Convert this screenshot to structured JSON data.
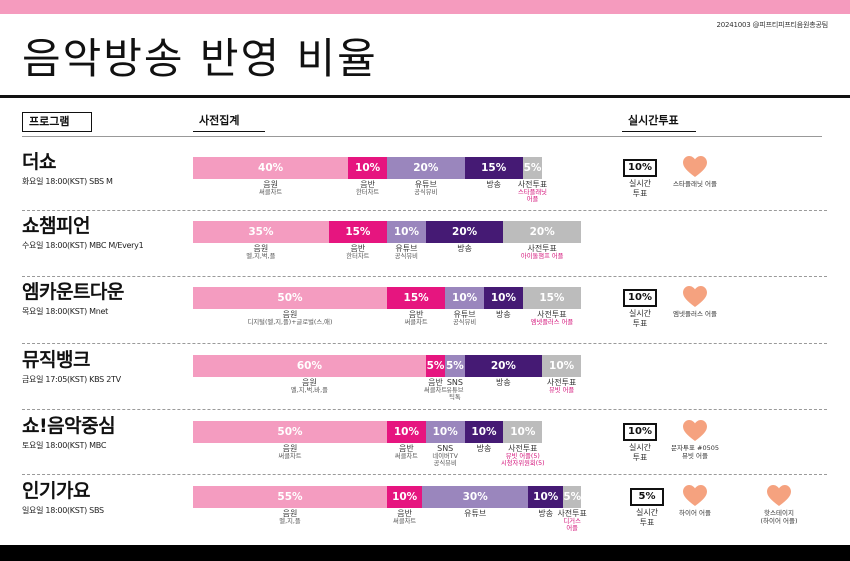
{
  "colors": {
    "top_bar": "#f59bbe",
    "pink": "#f49cc0",
    "magenta": "#e6157f",
    "lavender": "#9a86bd",
    "purple": "#451a74",
    "gray": "#bcbcbc",
    "accent_text": "#d4127a",
    "heart": "#f5a27f"
  },
  "credit": "20241003 @피프티피프티음원총공팀",
  "title": "음악방송 반영 비율",
  "headers": {
    "program": "프로그램",
    "pre": "사전집계",
    "realtime": "실시간투표"
  },
  "programs": [
    {
      "name": "더쇼",
      "time": "화요일 18:00(KST) SBS M",
      "segments": [
        {
          "pct": "40%",
          "share": 40,
          "color": "pink",
          "label": "음원",
          "sub": "써클차트",
          "note": ""
        },
        {
          "pct": "10%",
          "share": 10,
          "color": "magenta",
          "label": "음반",
          "sub": "한터차트",
          "note": ""
        },
        {
          "pct": "20%",
          "share": 20,
          "color": "lavender",
          "label": "유튜브",
          "sub": "공식뮤비",
          "note": ""
        },
        {
          "pct": "15%",
          "share": 15,
          "color": "purple",
          "label": "방송",
          "sub": "",
          "note": ""
        },
        {
          "pct": "5%",
          "share": 5,
          "color": "gray",
          "label": "사전투표",
          "sub": "",
          "note": "스타플래닛\n어플"
        }
      ],
      "realtime": {
        "pct": "10%",
        "label": "실시간\n투표"
      },
      "hearts": [
        {
          "label": "스타플래닛 어플"
        }
      ]
    },
    {
      "name": "쇼챔피언",
      "time": "수요일 18:00(KST) MBC M/Every1",
      "segments": [
        {
          "pct": "35%",
          "share": 35,
          "color": "pink",
          "label": "음원",
          "sub": "멜,지,벅,플",
          "note": ""
        },
        {
          "pct": "15%",
          "share": 15,
          "color": "magenta",
          "label": "음반",
          "sub": "한터차트",
          "note": ""
        },
        {
          "pct": "10%",
          "share": 10,
          "color": "lavender",
          "label": "유튜브",
          "sub": "공식뮤비",
          "note": ""
        },
        {
          "pct": "20%",
          "share": 20,
          "color": "purple",
          "label": "방송",
          "sub": "",
          "note": ""
        },
        {
          "pct": "20%",
          "share": 20,
          "color": "gray",
          "label": "사전투표",
          "sub": "",
          "note": "아이돌챔프 어플"
        }
      ],
      "realtime": null,
      "hearts": []
    },
    {
      "name": "엠카운트다운",
      "time": "목요일 18:00(KST) Mnet",
      "segments": [
        {
          "pct": "50%",
          "share": 50,
          "color": "pink",
          "label": "음원",
          "sub": "디지털(멜,지,플)+글로벌(스,애)",
          "note": ""
        },
        {
          "pct": "15%",
          "share": 15,
          "color": "magenta",
          "label": "음반",
          "sub": "써클차트",
          "note": ""
        },
        {
          "pct": "10%",
          "share": 10,
          "color": "lavender",
          "label": "유튜브",
          "sub": "공식뮤비",
          "note": ""
        },
        {
          "pct": "10%",
          "share": 10,
          "color": "purple",
          "label": "방송",
          "sub": "",
          "note": ""
        },
        {
          "pct": "15%",
          "share": 15,
          "color": "gray",
          "label": "사전투표",
          "sub": "",
          "note": "엠넷플러스 어플"
        }
      ],
      "realtime": {
        "pct": "10%",
        "label": "실시간\n투표"
      },
      "hearts": [
        {
          "label": "엠넷플러스 어플"
        }
      ]
    },
    {
      "name": "뮤직뱅크",
      "time": "금요일 17:05(KST) KBS 2TV",
      "segments": [
        {
          "pct": "60%",
          "share": 60,
          "color": "pink",
          "label": "음원",
          "sub": "멜,지,벅,바,플",
          "note": ""
        },
        {
          "pct": "5%",
          "share": 5,
          "color": "magenta",
          "label": "음반",
          "sub": "써클차트",
          "note": ""
        },
        {
          "pct": "5%",
          "share": 5,
          "color": "lavender",
          "label": "SNS",
          "sub": "유튜브\n틱톡",
          "note": ""
        },
        {
          "pct": "20%",
          "share": 20,
          "color": "purple",
          "label": "방송",
          "sub": "",
          "note": ""
        },
        {
          "pct": "10%",
          "share": 10,
          "color": "gray",
          "label": "사전투표",
          "sub": "",
          "note": "뮤빗 어플"
        }
      ],
      "realtime": null,
      "hearts": []
    },
    {
      "name": "쇼!음악중심",
      "time": "토요일 18:00(KST) MBC",
      "segments": [
        {
          "pct": "50%",
          "share": 50,
          "color": "pink",
          "label": "음원",
          "sub": "써클차트",
          "note": ""
        },
        {
          "pct": "10%",
          "share": 10,
          "color": "magenta",
          "label": "음반",
          "sub": "써클차트",
          "note": ""
        },
        {
          "pct": "10%",
          "share": 10,
          "color": "lavender",
          "label": "SNS",
          "sub": "네이버TV\n공식뮤비",
          "note": ""
        },
        {
          "pct": "10%",
          "share": 10,
          "color": "purple",
          "label": "방송",
          "sub": "",
          "note": ""
        },
        {
          "pct": "10%",
          "share": 10,
          "color": "gray",
          "label": "사전투표",
          "sub": "",
          "note": "뮤빗 어플(5)\n시청자위원회(5)"
        }
      ],
      "realtime": {
        "pct": "10%",
        "label": "실시간\n투표"
      },
      "hearts": [
        {
          "label": "문자투표 #0505\n뮤빗 어플"
        }
      ]
    },
    {
      "name": "인기가요",
      "time": "일요일 18:00(KST) SBS",
      "segments": [
        {
          "pct": "55%",
          "share": 55,
          "color": "pink",
          "label": "음원",
          "sub": "멜,지,플",
          "note": ""
        },
        {
          "pct": "10%",
          "share": 10,
          "color": "magenta",
          "label": "음반",
          "sub": "써클차트",
          "note": ""
        },
        {
          "pct": "30%",
          "share": 30,
          "color": "lavender",
          "label": "유튜브",
          "sub": "",
          "note": ""
        },
        {
          "pct": "10%",
          "share": 10,
          "color": "purple",
          "label": "방송",
          "sub": "",
          "note": ""
        },
        {
          "pct": "5%",
          "share": 5,
          "color": "gray",
          "label": "사전투표",
          "sub": "",
          "note": "디거스\n어플"
        }
      ],
      "realtime": {
        "pct": "5%",
        "label": "실시간\n투표"
      },
      "hearts": [
        {
          "label": "하이어 어플"
        },
        {
          "label": "핫스테이지\n(하이어 어플)"
        }
      ]
    }
  ]
}
